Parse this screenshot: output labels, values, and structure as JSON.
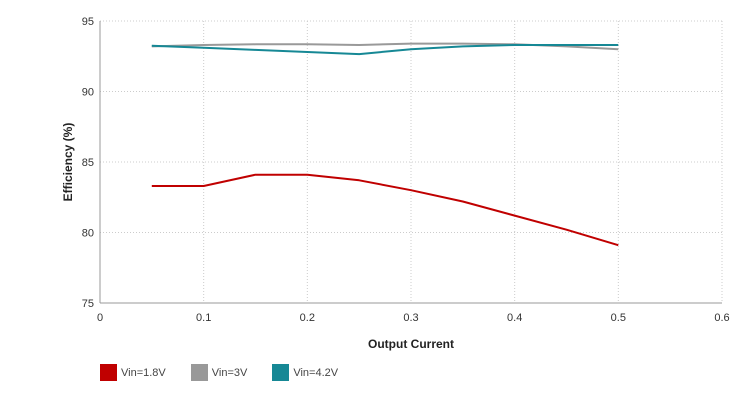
{
  "chart_data": {
    "type": "line",
    "title": "",
    "xlabel": "Output Current",
    "ylabel": "Efficiency (%)",
    "xlim": [
      0,
      0.6
    ],
    "ylim": [
      75,
      95
    ],
    "xticks": [
      "0",
      "0.1",
      "0.2",
      "0.3",
      "0.4",
      "0.5",
      "0.6"
    ],
    "yticks": [
      "75",
      "80",
      "85",
      "90",
      "95"
    ],
    "grid": true,
    "legend_position": "bottom-left",
    "series": [
      {
        "name": "Vin=1.8V",
        "color": "#c00000",
        "x": [
          0.05,
          0.1,
          0.15,
          0.2,
          0.25,
          0.3,
          0.35,
          0.4,
          0.45,
          0.5
        ],
        "y": [
          83.3,
          83.3,
          84.1,
          84.1,
          83.7,
          83.0,
          82.2,
          81.2,
          80.2,
          79.1
        ]
      },
      {
        "name": "Vin=3V",
        "color": "#999999",
        "x": [
          0.05,
          0.1,
          0.15,
          0.2,
          0.25,
          0.3,
          0.35,
          0.4,
          0.45,
          0.5
        ],
        "y": [
          93.2,
          93.3,
          93.35,
          93.35,
          93.3,
          93.4,
          93.4,
          93.35,
          93.2,
          93.0
        ]
      },
      {
        "name": "Vin=4.2V",
        "color": "#168895",
        "x": [
          0.05,
          0.1,
          0.15,
          0.2,
          0.25,
          0.3,
          0.35,
          0.4,
          0.45,
          0.5
        ],
        "y": [
          93.25,
          93.1,
          92.95,
          92.8,
          92.65,
          93.0,
          93.2,
          93.3,
          93.3,
          93.3
        ]
      }
    ]
  }
}
